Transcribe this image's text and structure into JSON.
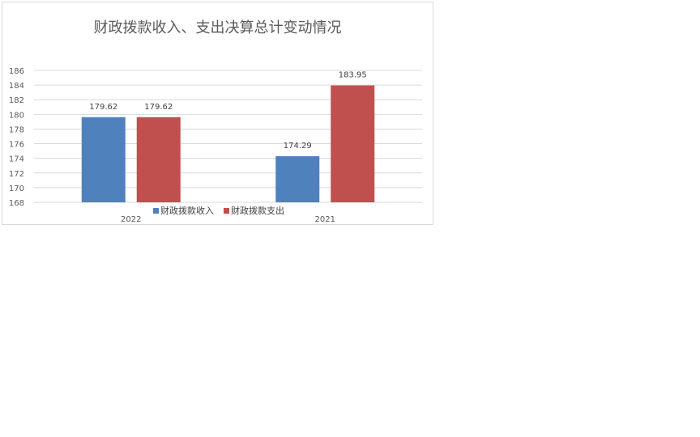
{
  "chart_data": {
    "type": "bar",
    "title": "财政拨款收入、支出决算总计变动情况",
    "categories": [
      "2022",
      "2021"
    ],
    "series": [
      {
        "name": "财政拨款收入",
        "values": [
          179.62,
          174.29
        ],
        "color": "#4f81bd"
      },
      {
        "name": "财政拨款支出",
        "values": [
          179.62,
          183.95
        ],
        "color": "#c0504d"
      }
    ],
    "ylim": [
      168,
      186
    ],
    "yticks": [
      168,
      170,
      172,
      174,
      176,
      178,
      180,
      182,
      184,
      186
    ],
    "grid": true,
    "legend": "bottom",
    "data_labels": true
  }
}
